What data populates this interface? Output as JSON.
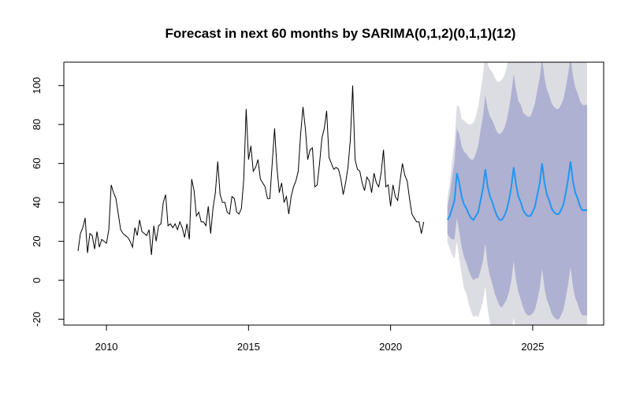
{
  "chart_data": {
    "type": "line",
    "title": "Forecast in next 60 months by SARIMA(0,1,2)(0,1,1)(12)",
    "xlabel": "",
    "ylabel": "",
    "xlim": [
      2008.5,
      2027.5
    ],
    "ylim": [
      -23,
      112
    ],
    "x_ticks": [
      2010,
      2015,
      2020,
      2025
    ],
    "y_ticks": [
      -20,
      0,
      20,
      40,
      60,
      80,
      100
    ],
    "grid": false,
    "legend": "none",
    "colors": {
      "observed": "#000000",
      "forecast": "#2196f3",
      "band80": "#aeb1d1",
      "band95": "#dcdce3"
    },
    "observed": {
      "name": "observed",
      "start": 2009.0,
      "frequency": 12,
      "values": [
        15,
        24,
        27,
        32,
        14,
        24,
        23,
        16,
        25,
        17,
        21,
        20,
        19,
        26,
        49,
        45,
        42,
        34,
        26,
        24,
        23,
        22,
        20,
        17,
        27,
        23,
        31,
        25,
        24,
        23,
        26,
        13,
        28,
        20,
        28,
        29,
        40,
        44,
        28,
        29,
        27,
        29,
        26,
        30,
        27,
        22,
        29,
        21,
        52,
        46,
        33,
        35,
        30,
        30,
        28,
        38,
        24,
        37,
        45,
        61,
        44,
        40,
        40,
        35,
        34,
        43,
        42,
        35,
        34,
        37,
        52,
        88,
        62,
        69,
        56,
        58,
        62,
        52,
        50,
        48,
        42,
        42,
        60,
        78,
        58,
        45,
        50,
        40,
        43,
        34,
        43,
        48,
        51,
        56,
        75,
        89,
        78,
        62,
        67,
        68,
        48,
        49,
        60,
        73,
        78,
        87,
        63,
        60,
        57,
        58,
        57,
        52,
        44,
        50,
        58,
        72,
        100,
        62,
        57,
        56,
        50,
        46,
        53,
        51,
        45,
        55,
        50,
        48,
        55,
        67,
        48,
        49,
        38,
        49,
        43,
        41,
        51,
        60,
        54,
        51,
        42,
        34,
        32,
        30,
        30,
        24,
        30
      ]
    },
    "forecast": {
      "name": "forecast",
      "start": 2022.0,
      "frequency": 12,
      "values": [
        31,
        33,
        37,
        41,
        55,
        50,
        43,
        39,
        37,
        34,
        32,
        31,
        33,
        35,
        41,
        47,
        57,
        48,
        43,
        40,
        36,
        33,
        31,
        31,
        33,
        36,
        41,
        48,
        58,
        49,
        43,
        40,
        36,
        34,
        33,
        33,
        35,
        38,
        44,
        50,
        60,
        50,
        44,
        41,
        37,
        35,
        34,
        34,
        36,
        39,
        45,
        52,
        61,
        51,
        45,
        42,
        38,
        36,
        36,
        36
      ]
    },
    "interval80": {
      "lower": [
        24,
        22,
        21,
        21,
        32,
        25,
        17,
        12,
        9,
        5,
        2,
        0,
        1,
        1,
        5,
        10,
        19,
        8,
        2,
        -2,
        -7,
        -10,
        -13,
        -14,
        -12,
        -10,
        -6,
        0,
        10,
        0,
        -6,
        -10,
        -14,
        -17,
        -18,
        -18,
        -17,
        -15,
        -10,
        -4,
        6,
        -4,
        -10,
        -13,
        -17,
        -19,
        -20,
        -20,
        -18,
        -15,
        -9,
        -2,
        7,
        -3,
        -9,
        -12,
        -16,
        -18,
        -18,
        -18
      ],
      "upper": [
        38,
        44,
        53,
        61,
        78,
        75,
        69,
        66,
        65,
        63,
        62,
        62,
        65,
        69,
        77,
        84,
        95,
        88,
        84,
        82,
        79,
        76,
        75,
        76,
        78,
        82,
        88,
        96,
        106,
        98,
        92,
        90,
        86,
        85,
        84,
        84,
        87,
        91,
        98,
        104,
        114,
        104,
        98,
        95,
        91,
        89,
        88,
        88,
        90,
        93,
        99,
        106,
        115,
        105,
        99,
        96,
        92,
        90,
        90,
        90
      ]
    },
    "interval95": {
      "lower": [
        20,
        16,
        13,
        11,
        20,
        11,
        3,
        -4,
        -7,
        -12,
        -16,
        -19,
        -18,
        -19,
        -15,
        -11,
        -3,
        -15,
        -22,
        -27,
        -32,
        -36,
        -40,
        -41,
        -39,
        -37,
        -34,
        -28,
        -19,
        -29,
        -36,
        -40,
        -45,
        -48,
        -49,
        -49,
        -49,
        -47,
        -42,
        -37,
        -27,
        -38,
        -44,
        -48,
        -52,
        -55,
        -56,
        -56,
        -54,
        -52,
        -47,
        -41,
        -32,
        -42,
        -48,
        -51,
        -55,
        -57,
        -57,
        -57
      ],
      "upper": [
        42,
        50,
        61,
        71,
        90,
        89,
        83,
        82,
        81,
        80,
        80,
        81,
        84,
        89,
        97,
        105,
        117,
        111,
        108,
        107,
        104,
        102,
        102,
        103,
        105,
        109,
        116,
        124,
        135,
        127,
        122,
        120,
        116,
        116,
        115,
        115,
        119,
        123,
        130,
        137,
        147,
        138,
        132,
        130,
        126,
        125,
        124,
        124,
        126,
        130,
        137,
        145,
        154,
        144,
        138,
        136,
        132,
        130,
        130,
        130
      ]
    }
  }
}
